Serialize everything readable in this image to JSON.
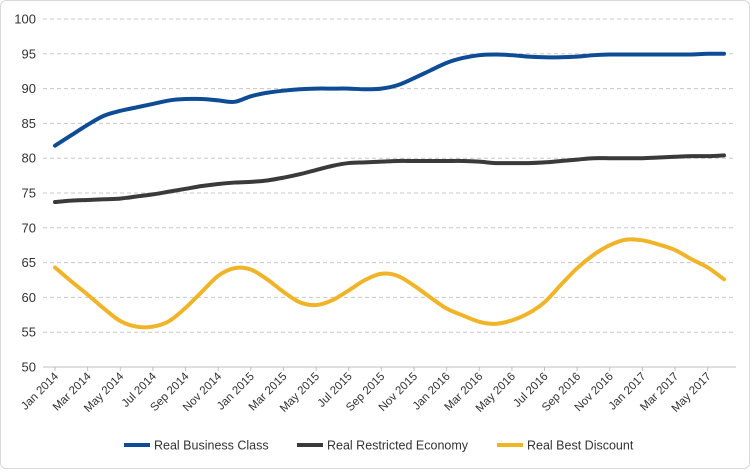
{
  "chart_data": {
    "type": "line",
    "title": "",
    "xlabel": "",
    "ylabel": "",
    "ylim": [
      50,
      100
    ],
    "yticks": [
      50,
      55,
      60,
      65,
      70,
      75,
      80,
      85,
      90,
      95,
      100
    ],
    "grid": true,
    "legend_position": "bottom",
    "x": [
      "Jan 2014",
      "Feb 2014",
      "Mar 2014",
      "Apr 2014",
      "May 2014",
      "Jun 2014",
      "Jul 2014",
      "Aug 2014",
      "Sep 2014",
      "Oct 2014",
      "Nov 2014",
      "Dec 2014",
      "Jan 2015",
      "Feb 2015",
      "Mar 2015",
      "Apr 2015",
      "May 2015",
      "Jun 2015",
      "Jul 2015",
      "Aug 2015",
      "Sep 2015",
      "Oct 2015",
      "Nov 2015",
      "Dec 2015",
      "Jan 2016",
      "Feb 2016",
      "Mar 2016",
      "Apr 2016",
      "May 2016",
      "Jun 2016",
      "Jul 2016",
      "Aug 2016",
      "Sep 2016",
      "Oct 2016",
      "Nov 2016",
      "Dec 2016",
      "Jan 2017",
      "Feb 2017",
      "Mar 2017",
      "Apr 2017",
      "May 2017",
      "Jun 2017"
    ],
    "x_tick_labels": [
      "Jan 2014",
      "Mar 2014",
      "May 2014",
      "Jul 2014",
      "Sep 2014",
      "Nov 2014",
      "Jan 2015",
      "Mar 2015",
      "May 2015",
      "Jul 2015",
      "Sep 2015",
      "Nov 2015",
      "Jan 2016",
      "Mar 2016",
      "May 2016",
      "Jul 2016",
      "Sep 2016",
      "Nov 2016",
      "Jan 2017",
      "Mar 2017",
      "May 2017"
    ],
    "series": [
      {
        "name": "Real Business Class",
        "color": "#0f4c96",
        "values": [
          81.8,
          83.3,
          84.8,
          86.1,
          86.8,
          87.3,
          87.8,
          88.3,
          88.5,
          88.5,
          88.3,
          88.1,
          88.9,
          89.4,
          89.7,
          89.9,
          90.0,
          90.0,
          90.0,
          89.9,
          90.0,
          90.5,
          91.5,
          92.6,
          93.7,
          94.4,
          94.8,
          94.9,
          94.8,
          94.6,
          94.5,
          94.5,
          94.6,
          94.8,
          94.9,
          94.9,
          94.9,
          94.9,
          94.9,
          94.9,
          95.0,
          95.0
        ]
      },
      {
        "name": "Real Restricted Economy",
        "color": "#3a3a3a",
        "values": [
          73.7,
          73.9,
          74.0,
          74.1,
          74.2,
          74.5,
          74.8,
          75.2,
          75.6,
          76.0,
          76.3,
          76.5,
          76.6,
          76.8,
          77.2,
          77.7,
          78.3,
          78.9,
          79.3,
          79.4,
          79.5,
          79.6,
          79.6,
          79.6,
          79.6,
          79.6,
          79.5,
          79.3,
          79.3,
          79.3,
          79.4,
          79.6,
          79.8,
          80.0,
          80.0,
          80.0,
          80.0,
          80.1,
          80.2,
          80.3,
          80.3,
          80.4
        ]
      },
      {
        "name": "Real Best Discount",
        "color": "#f0b429",
        "values": [
          64.3,
          62.3,
          60.4,
          58.4,
          56.6,
          55.8,
          55.8,
          56.6,
          58.5,
          60.8,
          63.1,
          64.2,
          64.0,
          62.6,
          60.8,
          59.3,
          58.9,
          59.6,
          61.0,
          62.5,
          63.4,
          63.1,
          61.7,
          60.0,
          58.4,
          57.4,
          56.5,
          56.2,
          56.7,
          57.7,
          59.3,
          61.8,
          64.2,
          66.1,
          67.5,
          68.3,
          68.2,
          67.6,
          66.8,
          65.5,
          64.3,
          62.6
        ]
      }
    ]
  }
}
